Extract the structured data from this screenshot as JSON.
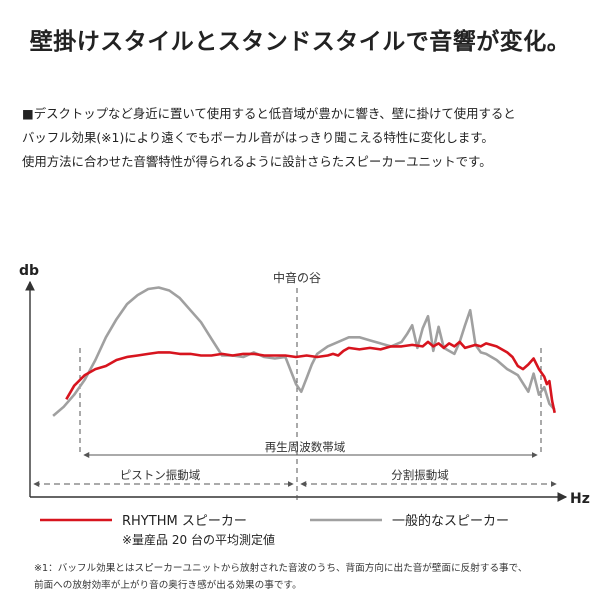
{
  "page": {
    "title": "壁掛けスタイルとスタンドスタイルで音響が変化。",
    "description": [
      "■デスクトップなど身近に置いて使用すると低音域が豊かに響き、壁に掛けて使用すると",
      "バッフル効果(※1)により遠くでもボーカル音がはっきり聞こえる特性に変化します。",
      "使用方法に合わせた音響特性が得られるように設計さらたスピーカーユニットです。"
    ],
    "footnote": [
      "※1：バッフル効果とはスピーカーユニットから放射された音波のうち、背面方向に出た音が壁面に反射する事で、",
      "前面への放射効率が上がり音の奥行き感が出る効果の事です。"
    ]
  },
  "chart_data": {
    "type": "line",
    "ylabel": "db",
    "xlabel": "Hz",
    "xlim": [
      0,
      100
    ],
    "ylim": [
      0,
      100
    ],
    "annotations": {
      "mid_valley": "中音の谷",
      "full_range": "再生周波数帯域",
      "piston_range": "ピストン振動域",
      "split_range": "分割振動域"
    },
    "legend": {
      "rhythm": "RHYTHM スピーカー",
      "general": "一般的なスピーカー",
      "note": "※量産品 20 台の平均測定値"
    },
    "colors": {
      "rhythm": "#d7141e",
      "general": "#a0a0a0",
      "axis": "#333333",
      "guide": "#555555"
    },
    "series": [
      {
        "name": "RHYTHM スピーカー",
        "key": "rhythm",
        "x": [
          6.5,
          8,
          10,
          12,
          14,
          16,
          18,
          20,
          22,
          24,
          26,
          28,
          30,
          32,
          34,
          36,
          38,
          40,
          42,
          44,
          46,
          48,
          50,
          52,
          54,
          56,
          57,
          58,
          59,
          60,
          62,
          64,
          66,
          68,
          70,
          72,
          74,
          75,
          76,
          77,
          78,
          79,
          80,
          81,
          82,
          83,
          84,
          85,
          86,
          88,
          90,
          91,
          92,
          93,
          94,
          95,
          96,
          97,
          97.5,
          98,
          98.5,
          99
        ],
        "y": [
          25,
          34,
          41,
          45,
          47,
          51,
          53,
          54,
          55,
          56,
          56,
          55,
          55,
          54,
          54,
          55,
          54,
          55,
          55,
          54,
          54,
          54,
          53,
          54,
          53,
          54,
          55,
          54,
          57,
          59,
          58,
          59,
          58,
          60,
          60,
          61,
          60,
          63,
          60,
          62,
          59,
          62,
          60,
          63,
          59,
          60,
          61,
          60,
          62,
          60,
          56,
          53,
          47,
          45,
          48,
          52,
          45,
          40,
          35,
          37,
          24,
          16
        ]
      },
      {
        "name": "一般的なスピーカー",
        "key": "general",
        "x": [
          4,
          6,
          8,
          10,
          12,
          14,
          16,
          18,
          20,
          22,
          24,
          26,
          28,
          30,
          32,
          34,
          36,
          38,
          40,
          42,
          44,
          46,
          48,
          50,
          51,
          52,
          53,
          54,
          56,
          58,
          60,
          62,
          64,
          66,
          68,
          70,
          71,
          72,
          73,
          74,
          75,
          76,
          77,
          78,
          79,
          80,
          81,
          82,
          83,
          84,
          85,
          86,
          88,
          90,
          92,
          94,
          95,
          96,
          97,
          98,
          99
        ],
        "y": [
          14,
          20,
          28,
          38,
          51,
          66,
          78,
          88,
          94,
          98,
          99,
          97,
          92,
          84,
          76,
          65,
          54,
          54,
          53,
          56,
          53,
          52,
          53,
          35,
          30,
          39,
          48,
          55,
          60,
          63,
          66,
          66,
          64,
          62,
          60,
          63,
          68,
          74,
          59,
          72,
          80,
          57,
          73,
          59,
          57,
          55,
          63,
          74,
          84,
          61,
          56,
          55,
          51,
          45,
          41,
          30,
          42,
          28,
          33,
          22,
          18
        ]
      }
    ]
  }
}
